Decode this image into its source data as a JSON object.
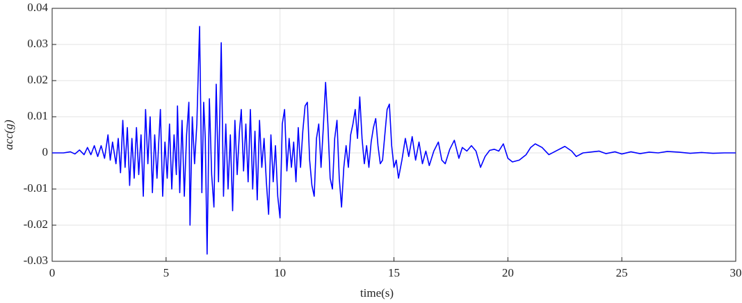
{
  "chart_data": {
    "type": "line",
    "xlabel": "time(s)",
    "ylabel": "acc(g)",
    "xlim": [
      0,
      30
    ],
    "xticks": [
      0,
      5,
      10,
      15,
      20,
      25,
      30
    ],
    "ylim": [
      -0.03,
      0.04
    ],
    "yticks": [
      0.04,
      0.03,
      0.02,
      0.01,
      0,
      -0.01,
      -0.02,
      -0.03
    ],
    "grid": true,
    "series": [
      {
        "color": "#0000ff",
        "x": [
          0,
          0.5,
          0.8,
          1.0,
          1.2,
          1.4,
          1.55,
          1.7,
          1.85,
          2.0,
          2.15,
          2.3,
          2.45,
          2.55,
          2.65,
          2.8,
          2.9,
          3.0,
          3.1,
          3.2,
          3.3,
          3.4,
          3.5,
          3.6,
          3.7,
          3.8,
          3.9,
          4.0,
          4.1,
          4.2,
          4.3,
          4.4,
          4.5,
          4.6,
          4.75,
          4.85,
          4.95,
          5.05,
          5.15,
          5.25,
          5.35,
          5.45,
          5.5,
          5.6,
          5.7,
          5.8,
          5.9,
          6.0,
          6.05,
          6.15,
          6.25,
          6.35,
          6.47,
          6.57,
          6.65,
          6.72,
          6.8,
          6.9,
          7.0,
          7.1,
          7.2,
          7.3,
          7.42,
          7.52,
          7.62,
          7.72,
          7.82,
          7.92,
          8.02,
          8.12,
          8.22,
          8.3,
          8.4,
          8.5,
          8.6,
          8.7,
          8.8,
          8.9,
          9.0,
          9.1,
          9.2,
          9.3,
          9.4,
          9.5,
          9.6,
          9.7,
          9.8,
          9.9,
          10.0,
          10.1,
          10.2,
          10.3,
          10.4,
          10.5,
          10.6,
          10.7,
          10.8,
          10.9,
          11.0,
          11.1,
          11.2,
          11.3,
          11.4,
          11.5,
          11.6,
          11.7,
          11.8,
          11.9,
          12.0,
          12.1,
          12.2,
          12.3,
          12.4,
          12.5,
          12.6,
          12.7,
          12.8,
          12.9,
          13.0,
          13.1,
          13.2,
          13.3,
          13.4,
          13.5,
          13.6,
          13.7,
          13.8,
          13.9,
          14.0,
          14.1,
          14.2,
          14.3,
          14.4,
          14.5,
          14.6,
          14.7,
          14.8,
          14.9,
          15.0,
          15.1,
          15.2,
          15.35,
          15.5,
          15.65,
          15.8,
          15.95,
          16.1,
          16.25,
          16.4,
          16.55,
          16.75,
          16.95,
          17.1,
          17.25,
          17.45,
          17.65,
          17.85,
          18.0,
          18.2,
          18.4,
          18.6,
          18.8,
          19.0,
          19.2,
          19.4,
          19.6,
          19.8,
          20.0,
          20.2,
          20.5,
          20.8,
          21.0,
          21.2,
          21.5,
          21.8,
          22.1,
          22.5,
          22.8,
          23.0,
          23.3,
          23.6,
          24.0,
          24.3,
          24.7,
          25.0,
          25.4,
          25.8,
          26.2,
          26.6,
          27.0,
          27.5,
          28.0,
          28.5,
          29.0,
          29.5,
          30.0
        ],
        "values": [
          0,
          0,
          0.0003,
          -0.0003,
          0.0008,
          -0.0005,
          0.0015,
          -0.0005,
          0.002,
          -0.001,
          0.002,
          -0.0015,
          0.005,
          -0.002,
          0.003,
          -0.003,
          0.004,
          -0.0055,
          0.009,
          -0.004,
          0.007,
          -0.009,
          0.004,
          -0.007,
          0.007,
          -0.006,
          0.005,
          -0.012,
          0.012,
          -0.003,
          0.01,
          -0.011,
          0.005,
          -0.007,
          0.012,
          -0.012,
          0.003,
          -0.007,
          0.008,
          -0.01,
          0.005,
          -0.006,
          0.013,
          -0.011,
          0.009,
          -0.012,
          0.005,
          0.014,
          -0.02,
          0.01,
          -0.003,
          0.008,
          0.035,
          -0.011,
          0.014,
          0.004,
          -0.028,
          0.015,
          -0.006,
          -0.015,
          0.019,
          -0.008,
          0.0305,
          -0.012,
          0.008,
          -0.01,
          0.005,
          -0.016,
          0.009,
          -0.006,
          0.006,
          0.012,
          -0.005,
          0.008,
          -0.008,
          0.012,
          -0.01,
          0.006,
          -0.013,
          0.009,
          -0.004,
          0.004,
          -0.008,
          -0.017,
          0.005,
          -0.008,
          0.002,
          -0.012,
          -0.018,
          0.008,
          0.012,
          -0.005,
          0.004,
          -0.004,
          0.003,
          -0.008,
          0.007,
          -0.004,
          0.006,
          0.013,
          0.014,
          -0.002,
          -0.009,
          -0.012,
          0.004,
          0.008,
          -0.004,
          0.007,
          0.0195,
          0.008,
          -0.007,
          -0.01,
          0.004,
          0.009,
          -0.007,
          -0.015,
          -0.004,
          0.002,
          -0.004,
          0.005,
          0.008,
          0.012,
          0.004,
          0.0155,
          0.004,
          -0.003,
          0.002,
          -0.004,
          0.003,
          0.007,
          0.0095,
          0.002,
          -0.003,
          -0.002,
          0.005,
          0.012,
          0.0135,
          0.002,
          -0.004,
          -0.002,
          -0.007,
          -0.002,
          0.004,
          -0.001,
          0.0045,
          -0.002,
          0.003,
          -0.003,
          0.0005,
          -0.0035,
          0.0005,
          0.003,
          -0.002,
          -0.003,
          0.001,
          0.0035,
          -0.0015,
          0.0015,
          0.0005,
          0.002,
          0.0005,
          -0.004,
          -0.001,
          0.0007,
          0.001,
          0.0005,
          0.0025,
          -0.0015,
          -0.0025,
          -0.002,
          -0.0005,
          0.0015,
          0.0025,
          0.0015,
          -0.0005,
          0.0005,
          0.0018,
          0.0005,
          -0.001,
          0,
          0.0002,
          0.0005,
          -0.0002,
          0.0003,
          -0.0003,
          0.0003,
          -0.0002,
          0.0002,
          0,
          0.0004,
          0.0002,
          -0.0001,
          0.0001,
          -0.0001,
          0,
          0
        ]
      }
    ]
  }
}
